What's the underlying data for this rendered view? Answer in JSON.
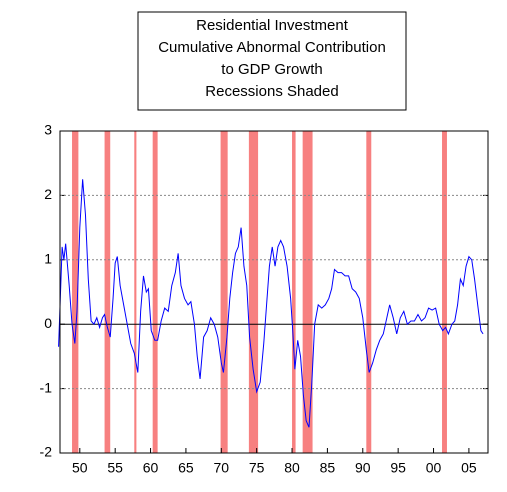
{
  "chart_data": {
    "type": "line",
    "title": [
      "Residential Investment",
      "Cumulative Abnormal Contribution",
      "to GDP Growth",
      "Recessions Shaded"
    ],
    "x": [
      1947.0,
      1947.5,
      1947.75,
      1948.0,
      1948.5,
      1948.9,
      1949.3,
      1949.6,
      1950.0,
      1950.4,
      1950.8,
      1951.2,
      1951.6,
      1952.0,
      1952.4,
      1952.8,
      1953.2,
      1953.5,
      1953.9,
      1954.3,
      1954.7,
      1955.0,
      1955.3,
      1955.7,
      1956.2,
      1956.7,
      1957.2,
      1957.7,
      1958.2,
      1958.6,
      1959.0,
      1959.4,
      1959.7,
      1960.1,
      1960.6,
      1961.0,
      1961.5,
      1962.0,
      1962.5,
      1963.0,
      1963.5,
      1963.9,
      1964.3,
      1964.8,
      1965.3,
      1965.7,
      1966.2,
      1966.6,
      1967.0,
      1967.5,
      1968.0,
      1968.5,
      1969.0,
      1969.5,
      1970.0,
      1970.3,
      1970.8,
      1971.2,
      1971.6,
      1972.0,
      1972.4,
      1972.8,
      1973.2,
      1973.6,
      1974.0,
      1974.5,
      1975.0,
      1975.5,
      1976.0,
      1976.4,
      1976.8,
      1977.2,
      1977.6,
      1978.0,
      1978.4,
      1978.8,
      1979.3,
      1979.8,
      1980.1,
      1980.4,
      1980.8,
      1981.2,
      1981.6,
      1982.0,
      1982.4,
      1982.8,
      1983.2,
      1983.7,
      1984.2,
      1984.7,
      1985.2,
      1985.6,
      1986.0,
      1986.5,
      1987.0,
      1987.5,
      1988.0,
      1988.5,
      1989.0,
      1989.5,
      1990.0,
      1990.5,
      1990.9,
      1991.4,
      1991.9,
      1992.4,
      1992.9,
      1993.4,
      1993.8,
      1994.3,
      1994.8,
      1995.3,
      1995.8,
      1996.3,
      1996.8,
      1997.3,
      1997.8,
      1998.3,
      1998.8,
      1999.3,
      1999.8,
      2000.3,
      2000.8,
      2001.3,
      2001.7,
      2002.1,
      2002.6,
      2003.0,
      2003.4,
      2003.8,
      2004.2,
      2004.6,
      2005.0,
      2005.4,
      2005.8,
      2006.3,
      2006.7,
      2007.0
    ],
    "series": [
      {
        "color": "#0000ff",
        "values": [
          -0.35,
          1.2,
          1.0,
          1.25,
          0.6,
          0.0,
          -0.3,
          0.2,
          1.5,
          2.25,
          1.7,
          0.7,
          0.05,
          0.0,
          0.1,
          -0.05,
          0.1,
          0.15,
          -0.05,
          -0.2,
          0.4,
          0.95,
          1.05,
          0.6,
          0.3,
          0.0,
          -0.3,
          -0.45,
          -0.75,
          0.2,
          0.75,
          0.5,
          0.55,
          -0.1,
          -0.25,
          -0.25,
          0.05,
          0.25,
          0.2,
          0.6,
          0.8,
          1.1,
          0.6,
          0.4,
          0.3,
          0.35,
          0.0,
          -0.5,
          -0.85,
          -0.2,
          -0.1,
          0.1,
          0.0,
          -0.2,
          -0.6,
          -0.75,
          -0.2,
          0.4,
          0.8,
          1.1,
          1.2,
          1.5,
          0.9,
          0.6,
          -0.2,
          -0.7,
          -1.05,
          -0.9,
          -0.3,
          0.3,
          0.9,
          1.2,
          0.9,
          1.2,
          1.3,
          1.2,
          0.9,
          0.4,
          -0.1,
          -0.7,
          -0.25,
          -0.5,
          -1.1,
          -1.5,
          -1.6,
          -0.9,
          0.0,
          0.3,
          0.25,
          0.3,
          0.4,
          0.55,
          0.85,
          0.8,
          0.8,
          0.75,
          0.75,
          0.55,
          0.5,
          0.4,
          0.1,
          -0.4,
          -0.75,
          -0.6,
          -0.4,
          -0.25,
          -0.15,
          0.1,
          0.3,
          0.1,
          -0.15,
          0.1,
          0.2,
          0.0,
          0.05,
          0.05,
          0.15,
          0.05,
          0.1,
          0.25,
          0.22,
          0.25,
          0.0,
          -0.1,
          -0.05,
          -0.15,
          0.0,
          0.05,
          0.3,
          0.7,
          0.6,
          0.9,
          1.05,
          1.0,
          0.7,
          0.25,
          -0.1,
          -0.15
        ]
      }
    ],
    "recessions": [
      [
        1948.9,
        1949.8
      ],
      [
        1953.5,
        1954.3
      ],
      [
        1957.7,
        1958.0
      ],
      [
        1960.3,
        1961.0
      ],
      [
        1969.9,
        1970.9
      ],
      [
        1973.9,
        1975.2
      ],
      [
        1980.0,
        1980.5
      ],
      [
        1981.5,
        1982.9
      ],
      [
        1990.5,
        1991.2
      ],
      [
        2001.2,
        2001.9
      ]
    ],
    "recession_color": "#f78080",
    "xlim": [
      1947.2,
      2007.7
    ],
    "xticks": [
      {
        "value": 1950,
        "label": "50"
      },
      {
        "value": 1955,
        "label": "55"
      },
      {
        "value": 1960,
        "label": "60"
      },
      {
        "value": 1965,
        "label": "65"
      },
      {
        "value": 1970,
        "label": "70"
      },
      {
        "value": 1975,
        "label": "75"
      },
      {
        "value": 1980,
        "label": "80"
      },
      {
        "value": 1985,
        "label": "85"
      },
      {
        "value": 1990,
        "label": "90"
      },
      {
        "value": 1995,
        "label": "95"
      },
      {
        "value": 2000,
        "label": "00"
      },
      {
        "value": 2005,
        "label": "05"
      }
    ],
    "ylim": [
      -2,
      3
    ],
    "yticks": [
      -2,
      -1,
      0,
      1,
      2,
      3
    ],
    "grid": true
  }
}
